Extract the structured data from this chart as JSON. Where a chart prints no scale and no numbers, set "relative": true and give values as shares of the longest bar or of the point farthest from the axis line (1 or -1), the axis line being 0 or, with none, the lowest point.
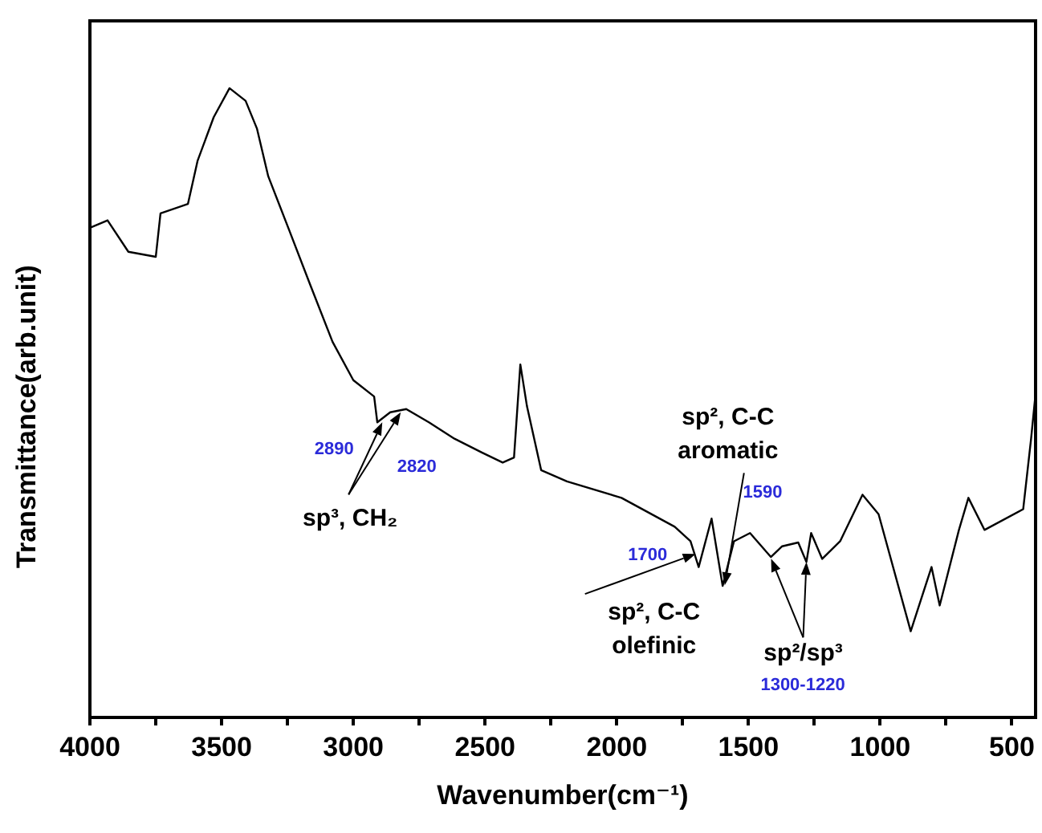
{
  "chart_data": {
    "type": "line",
    "relative": true,
    "xlabel": "Wavenumber(cm⁻¹)",
    "ylabel": "Transmittance(arb.unit)",
    "xlim": [
      4000,
      410
    ],
    "xticks": [
      4000,
      {
        "value": 3750,
        "label": null
      },
      3500,
      {
        "value": 3250,
        "label": null
      },
      3000,
      {
        "value": 2750,
        "label": null
      },
      2500,
      {
        "value": 2250,
        "label": null
      },
      2000,
      {
        "value": 1750,
        "label": null
      },
      1500,
      {
        "value": 1250,
        "label": null
      },
      1000,
      {
        "value": 750,
        "label": null
      },
      500
    ],
    "grid": false,
    "marker": "none",
    "line_style": "solid",
    "series": [
      {
        "color": "#000000",
        "x": [
          4000,
          3933,
          3854,
          3750,
          3732,
          3628,
          3591,
          3530,
          3470,
          3409,
          3366,
          3323,
          3244,
          3165,
          3079,
          3000,
          2921,
          2909,
          2860,
          2799,
          2713,
          2616,
          2512,
          2433,
          2390,
          2366,
          2341,
          2287,
          2189,
          1982,
          1780,
          1720,
          1689,
          1640,
          1598,
          1555,
          1494,
          1415,
          1372,
          1311,
          1280,
          1262,
          1220,
          1152,
          1067,
          1006,
          884,
          805,
          774,
          701,
          665,
          604,
          457,
          427,
          410
        ],
        "values": [
          0.778,
          0.79,
          0.74,
          0.732,
          0.801,
          0.816,
          0.885,
          0.954,
          1,
          0.98,
          0.936,
          0.86,
          0.775,
          0.689,
          0.597,
          0.536,
          0.51,
          0.469,
          0.485,
          0.49,
          0.469,
          0.443,
          0.421,
          0.405,
          0.413,
          0.561,
          0.495,
          0.393,
          0.375,
          0.349,
          0.303,
          0.28,
          0.239,
          0.316,
          0.209,
          0.28,
          0.293,
          0.255,
          0.272,
          0.278,
          0.247,
          0.293,
          0.252,
          0.28,
          0.354,
          0.323,
          0.137,
          0.239,
          0.178,
          0.298,
          0.349,
          0.298,
          0.331,
          0.443,
          0.515
        ]
      }
    ],
    "annotations": [
      {
        "text": "2890",
        "x": 2890,
        "y": 0.469
      },
      {
        "text": "2820",
        "x": 2820,
        "y": 0.485
      },
      {
        "text": "sp³, CH₂",
        "x": 2890,
        "y": 0.469
      },
      {
        "text": "1700",
        "x": 1700,
        "y": 0.26
      },
      {
        "text": "sp², C-C\nolefinic",
        "x": 1700,
        "y": 0.26
      },
      "1590",
      {
        "text": "sp², C-C\naromatic",
        "x": 1590,
        "y": 0.21
      },
      {
        "text": "sp²/sp³",
        "x": 1280,
        "y": 0.247
      },
      "1300-1220"
    ]
  }
}
